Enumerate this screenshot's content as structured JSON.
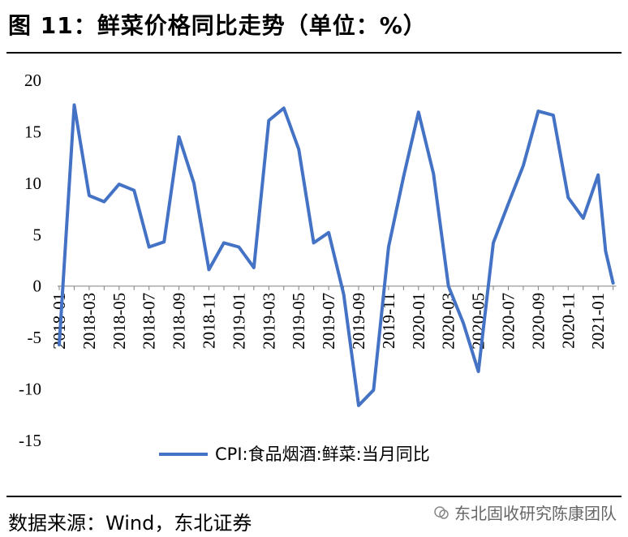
{
  "title": "图 11：鲜菜价格同比走势（单位：%）",
  "source": "数据来源：Wind，东北证券",
  "watermark": "东北固收研究陈康团队",
  "chart_data": {
    "type": "line",
    "title": "",
    "xlabel": "",
    "ylabel": "",
    "ylim": [
      -15,
      20
    ],
    "yticks": [
      20,
      15,
      10,
      5,
      0,
      -5,
      -10,
      -15
    ],
    "x_tick_labels": [
      "2018-01",
      "2018-03",
      "2018-05",
      "2018-07",
      "2018-09",
      "2018-11",
      "2019-01",
      "2019-03",
      "2019-05",
      "2019-07",
      "2019-09",
      "2019-11",
      "2020-01",
      "2020-03",
      "2020-05",
      "2020-07",
      "2020-09",
      "2020-11",
      "2021-01"
    ],
    "legend_position": "bottom",
    "grid": false,
    "series": [
      {
        "name": "CPI:食品烟酒:鲜菜:当月同比",
        "color": "#4472C4",
        "x": [
          0,
          1,
          2,
          3,
          4,
          5,
          6,
          7,
          8,
          9,
          10,
          11,
          12,
          13,
          14,
          15,
          16,
          17,
          18,
          19,
          20,
          21,
          22,
          23,
          24,
          25,
          26,
          27,
          28,
          29,
          30,
          31,
          32,
          33,
          34,
          35,
          36,
          36.5,
          37
        ],
        "values": [
          -5.7,
          17.6,
          8.8,
          8.2,
          9.9,
          9.3,
          3.8,
          4.3,
          14.5,
          10.0,
          1.6,
          4.2,
          3.8,
          1.8,
          16.1,
          17.3,
          13.3,
          4.2,
          5.2,
          -0.8,
          -11.6,
          -10.1,
          3.8,
          10.6,
          16.9,
          10.9,
          0.0,
          -3.6,
          -8.3,
          4.2,
          8.0,
          11.7,
          17.0,
          16.6,
          8.6,
          6.6,
          10.8,
          3.4,
          0.3
        ]
      }
    ]
  }
}
